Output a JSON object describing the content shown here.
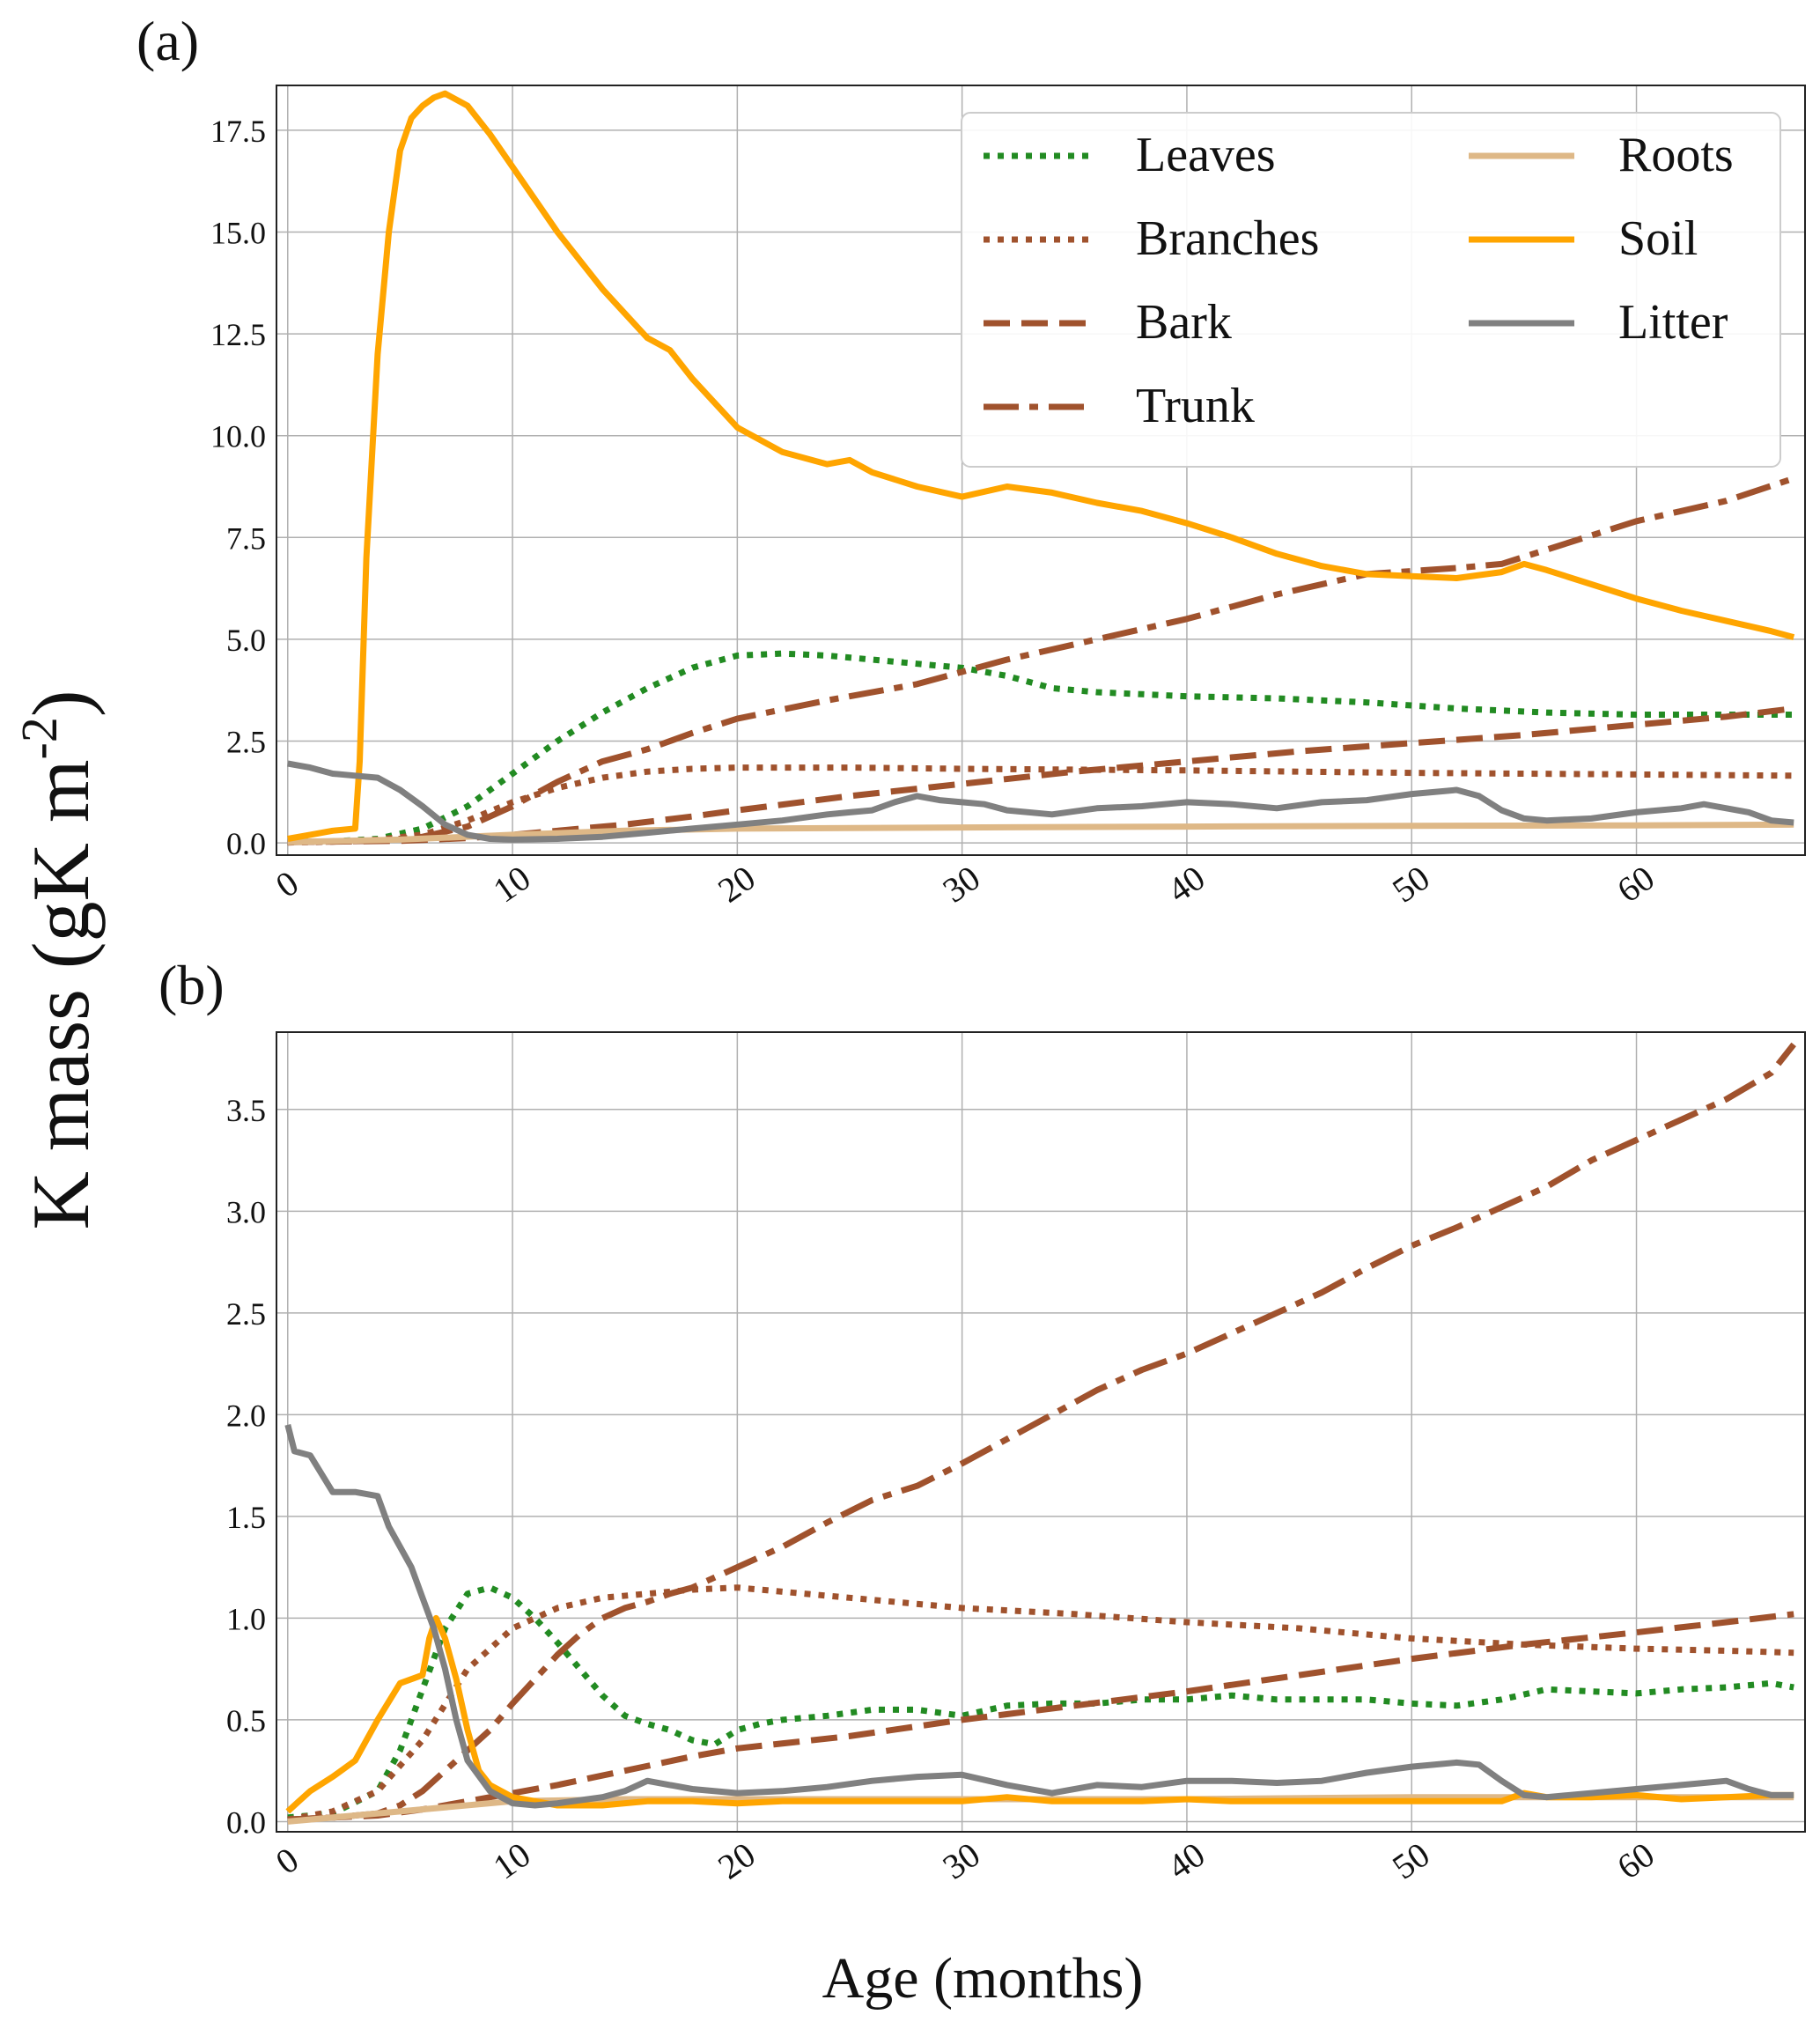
{
  "figure": {
    "ylabel": "K mass (gK m",
    "ylabel_sup": "-2",
    "ylabel_close": ")",
    "xlabel": "Age (months)"
  },
  "legend": {
    "items": [
      {
        "label": "Leaves",
        "color": "#228b22",
        "style": "dotted"
      },
      {
        "label": "Branches",
        "color": "#a0522d",
        "style": "dotted"
      },
      {
        "label": "Bark",
        "color": "#a0522d",
        "style": "dashed"
      },
      {
        "label": "Trunk",
        "color": "#a0522d",
        "style": "dashdot"
      },
      {
        "label": "Roots",
        "color": "#deb887",
        "style": "solid"
      },
      {
        "label": "Soil",
        "color": "#ffa500",
        "style": "solid"
      },
      {
        "label": "Litter",
        "color": "#808080",
        "style": "solid"
      }
    ]
  },
  "chart_data": [
    {
      "type": "line",
      "panel_label": "(a)",
      "xlim": [
        -0.5,
        67.5
      ],
      "ylim": [
        -0.3,
        18.6
      ],
      "xticks": [
        0,
        10,
        20,
        30,
        40,
        50,
        60
      ],
      "yticks": [
        0.0,
        2.5,
        5.0,
        7.5,
        10.0,
        12.5,
        15.0,
        17.5
      ],
      "grid": true,
      "legend_position": "top-right",
      "series": [
        {
          "name": "Leaves",
          "x": [
            0,
            2,
            4,
            6,
            8,
            10,
            12,
            14,
            16,
            18,
            20,
            22,
            24,
            26,
            28,
            30,
            32,
            34,
            36,
            38,
            40,
            44,
            48,
            52,
            56,
            60,
            64,
            67
          ],
          "y": [
            0.02,
            0.04,
            0.1,
            0.35,
            0.9,
            1.7,
            2.5,
            3.2,
            3.8,
            4.3,
            4.6,
            4.65,
            4.6,
            4.5,
            4.4,
            4.3,
            4.1,
            3.8,
            3.7,
            3.65,
            3.6,
            3.55,
            3.45,
            3.3,
            3.2,
            3.15,
            3.15,
            3.15
          ]
        },
        {
          "name": "Branches",
          "x": [
            0,
            2,
            4,
            6,
            8,
            10,
            12,
            14,
            16,
            18,
            20,
            25,
            30,
            35,
            40,
            45,
            50,
            55,
            60,
            67
          ],
          "y": [
            0.01,
            0.03,
            0.08,
            0.2,
            0.55,
            1.0,
            1.35,
            1.6,
            1.75,
            1.82,
            1.85,
            1.85,
            1.82,
            1.8,
            1.78,
            1.75,
            1.72,
            1.7,
            1.68,
            1.65
          ]
        },
        {
          "name": "Bark",
          "x": [
            0,
            5,
            8,
            10,
            12,
            15,
            18,
            20,
            25,
            30,
            35,
            40,
            45,
            50,
            55,
            60,
            64,
            67
          ],
          "y": [
            0.02,
            0.05,
            0.12,
            0.2,
            0.3,
            0.45,
            0.65,
            0.8,
            1.15,
            1.45,
            1.75,
            2.0,
            2.25,
            2.45,
            2.65,
            2.9,
            3.1,
            3.3
          ]
        },
        {
          "name": "Trunk",
          "x": [
            0,
            4,
            6,
            8,
            10,
            12,
            14,
            16,
            18,
            20,
            24,
            28,
            32,
            36,
            40,
            44,
            48,
            52,
            54,
            56,
            60,
            64,
            67
          ],
          "y": [
            0.02,
            0.05,
            0.15,
            0.4,
            0.9,
            1.5,
            2.0,
            2.3,
            2.7,
            3.05,
            3.5,
            3.9,
            4.5,
            5.0,
            5.5,
            6.1,
            6.6,
            6.75,
            6.85,
            7.2,
            7.9,
            8.4,
            8.95
          ]
        },
        {
          "name": "Roots",
          "x": [
            0,
            5,
            10,
            15,
            20,
            30,
            40,
            50,
            60,
            67
          ],
          "y": [
            0.02,
            0.08,
            0.2,
            0.3,
            0.35,
            0.38,
            0.4,
            0.42,
            0.43,
            0.45
          ]
        },
        {
          "name": "Soil",
          "x": [
            0,
            1,
            2,
            3,
            3.2,
            3.5,
            4,
            4.5,
            5,
            5.5,
            6,
            6.5,
            7,
            8,
            9,
            10,
            12,
            14,
            16,
            17,
            18,
            20,
            22,
            24,
            25,
            26,
            28,
            30,
            32,
            34,
            36,
            38,
            40,
            42,
            44,
            46,
            48,
            50,
            52,
            54,
            55,
            56,
            58,
            60,
            62,
            64,
            66,
            67
          ],
          "y": [
            0.1,
            0.2,
            0.3,
            0.35,
            2.0,
            7.0,
            12.0,
            15.0,
            17.0,
            17.8,
            18.1,
            18.3,
            18.4,
            18.1,
            17.4,
            16.6,
            15.0,
            13.6,
            12.4,
            12.1,
            11.4,
            10.2,
            9.6,
            9.3,
            9.4,
            9.1,
            8.75,
            8.5,
            8.75,
            8.6,
            8.35,
            8.15,
            7.85,
            7.5,
            7.1,
            6.8,
            6.6,
            6.55,
            6.5,
            6.65,
            6.85,
            6.7,
            6.35,
            6.0,
            5.7,
            5.45,
            5.2,
            5.05
          ]
        },
        {
          "name": "Litter",
          "x": [
            0,
            0.5,
            1,
            2,
            3,
            4,
            5,
            6,
            7,
            8,
            9,
            10,
            12,
            14,
            16,
            18,
            20,
            22,
            24,
            25,
            26,
            27,
            28,
            29,
            30,
            31,
            32,
            34,
            36,
            38,
            40,
            42,
            44,
            46,
            48,
            50,
            52,
            53,
            54,
            55,
            56,
            58,
            60,
            62,
            63,
            64,
            65,
            66,
            67
          ],
          "y": [
            1.95,
            1.9,
            1.85,
            1.7,
            1.65,
            1.6,
            1.3,
            0.9,
            0.45,
            0.2,
            0.1,
            0.08,
            0.1,
            0.15,
            0.25,
            0.35,
            0.45,
            0.55,
            0.7,
            0.75,
            0.8,
            1.0,
            1.15,
            1.05,
            1.0,
            0.95,
            0.8,
            0.7,
            0.85,
            0.9,
            1.0,
            0.95,
            0.85,
            1.0,
            1.05,
            1.2,
            1.3,
            1.15,
            0.8,
            0.6,
            0.55,
            0.6,
            0.75,
            0.85,
            0.95,
            0.85,
            0.75,
            0.55,
            0.5
          ]
        }
      ]
    },
    {
      "type": "line",
      "panel_label": "(b)",
      "xlim": [
        -0.5,
        67.5
      ],
      "ylim": [
        -0.05,
        3.88
      ],
      "xticks": [
        0,
        10,
        20,
        30,
        40,
        50,
        60
      ],
      "yticks": [
        0.0,
        0.5,
        1.0,
        1.5,
        2.0,
        2.5,
        3.0,
        3.5
      ],
      "grid": true,
      "series": [
        {
          "name": "Leaves",
          "x": [
            0,
            2,
            4,
            5,
            6,
            7,
            8,
            9,
            10,
            11,
            12,
            13,
            14,
            15,
            16,
            17,
            18,
            19,
            20,
            21,
            22,
            24,
            26,
            28,
            30,
            32,
            34,
            36,
            38,
            40,
            42,
            44,
            46,
            48,
            50,
            52,
            54,
            56,
            58,
            60,
            62,
            64,
            66,
            67
          ],
          "y": [
            0.02,
            0.04,
            0.15,
            0.35,
            0.65,
            0.95,
            1.12,
            1.15,
            1.1,
            1.0,
            0.88,
            0.75,
            0.62,
            0.52,
            0.48,
            0.45,
            0.4,
            0.38,
            0.45,
            0.48,
            0.5,
            0.52,
            0.55,
            0.55,
            0.52,
            0.57,
            0.58,
            0.58,
            0.6,
            0.6,
            0.62,
            0.6,
            0.6,
            0.6,
            0.58,
            0.57,
            0.6,
            0.65,
            0.64,
            0.63,
            0.65,
            0.66,
            0.68,
            0.66
          ]
        },
        {
          "name": "Branches",
          "x": [
            0,
            2,
            4,
            6,
            8,
            10,
            12,
            14,
            16,
            18,
            20,
            25,
            30,
            35,
            40,
            45,
            50,
            55,
            60,
            64,
            67
          ],
          "y": [
            0.01,
            0.05,
            0.15,
            0.4,
            0.75,
            0.95,
            1.05,
            1.1,
            1.12,
            1.14,
            1.15,
            1.1,
            1.05,
            1.02,
            0.98,
            0.95,
            0.9,
            0.87,
            0.85,
            0.84,
            0.83
          ]
        },
        {
          "name": "Bark",
          "x": [
            0,
            4,
            6,
            8,
            10,
            12,
            15,
            18,
            20,
            25,
            30,
            35,
            40,
            45,
            50,
            55,
            60,
            64,
            67
          ],
          "y": [
            0.01,
            0.03,
            0.06,
            0.1,
            0.14,
            0.18,
            0.25,
            0.32,
            0.36,
            0.42,
            0.5,
            0.57,
            0.64,
            0.72,
            0.8,
            0.87,
            0.93,
            0.98,
            1.02
          ]
        },
        {
          "name": "Trunk",
          "x": [
            0,
            2,
            4,
            5,
            6,
            7,
            8,
            9,
            10,
            11,
            12,
            13,
            14,
            15,
            16,
            17,
            18,
            20,
            22,
            24,
            26,
            28,
            30,
            32,
            34,
            36,
            38,
            40,
            42,
            44,
            46,
            48,
            50,
            52,
            54,
            56,
            58,
            60,
            62,
            64,
            66,
            67
          ],
          "y": [
            0.01,
            0.02,
            0.04,
            0.08,
            0.15,
            0.25,
            0.35,
            0.45,
            0.58,
            0.7,
            0.82,
            0.92,
            1.0,
            1.05,
            1.08,
            1.12,
            1.15,
            1.25,
            1.35,
            1.47,
            1.58,
            1.65,
            1.76,
            1.88,
            2.0,
            2.12,
            2.22,
            2.3,
            2.4,
            2.5,
            2.6,
            2.72,
            2.83,
            2.92,
            3.02,
            3.12,
            3.25,
            3.35,
            3.45,
            3.55,
            3.68,
            3.82
          ]
        },
        {
          "name": "Roots",
          "x": [
            0,
            5,
            10,
            15,
            20,
            30,
            40,
            50,
            60,
            67
          ],
          "y": [
            0.0,
            0.05,
            0.1,
            0.11,
            0.11,
            0.11,
            0.11,
            0.12,
            0.12,
            0.12
          ]
        },
        {
          "name": "Soil",
          "x": [
            0,
            0.5,
            1,
            2,
            3,
            4,
            5,
            5.5,
            6,
            6.3,
            6.6,
            7,
            7.5,
            8,
            8.5,
            9,
            10,
            11,
            12,
            14,
            16,
            18,
            20,
            22,
            24,
            26,
            28,
            30,
            32,
            34,
            36,
            38,
            40,
            42,
            44,
            46,
            48,
            50,
            52,
            54,
            55,
            56,
            58,
            60,
            62,
            64,
            66,
            67
          ],
          "y": [
            0.05,
            0.1,
            0.15,
            0.22,
            0.3,
            0.5,
            0.68,
            0.7,
            0.72,
            0.9,
            1.0,
            0.9,
            0.7,
            0.45,
            0.25,
            0.18,
            0.12,
            0.1,
            0.08,
            0.08,
            0.1,
            0.1,
            0.09,
            0.1,
            0.1,
            0.1,
            0.1,
            0.1,
            0.12,
            0.1,
            0.1,
            0.1,
            0.11,
            0.1,
            0.1,
            0.1,
            0.1,
            0.1,
            0.1,
            0.1,
            0.14,
            0.12,
            0.12,
            0.13,
            0.11,
            0.12,
            0.13,
            0.13
          ]
        },
        {
          "name": "Litter",
          "x": [
            0,
            0.3,
            1,
            2,
            3,
            4,
            4.5,
            5,
            5.5,
            6,
            6.5,
            7,
            7.5,
            8,
            9,
            10,
            11,
            12,
            14,
            15,
            16,
            17,
            18,
            20,
            22,
            24,
            26,
            28,
            30,
            32,
            34,
            36,
            38,
            40,
            42,
            44,
            46,
            48,
            50,
            52,
            53,
            54,
            55,
            56,
            58,
            60,
            62,
            64,
            65,
            66,
            67
          ],
          "y": [
            1.95,
            1.82,
            1.8,
            1.62,
            1.62,
            1.6,
            1.45,
            1.35,
            1.25,
            1.1,
            0.95,
            0.75,
            0.5,
            0.3,
            0.15,
            0.09,
            0.08,
            0.09,
            0.12,
            0.15,
            0.2,
            0.18,
            0.16,
            0.14,
            0.15,
            0.17,
            0.2,
            0.22,
            0.23,
            0.18,
            0.14,
            0.18,
            0.17,
            0.2,
            0.2,
            0.19,
            0.2,
            0.24,
            0.27,
            0.29,
            0.28,
            0.2,
            0.13,
            0.12,
            0.14,
            0.16,
            0.18,
            0.2,
            0.16,
            0.13,
            0.13
          ]
        }
      ]
    }
  ]
}
